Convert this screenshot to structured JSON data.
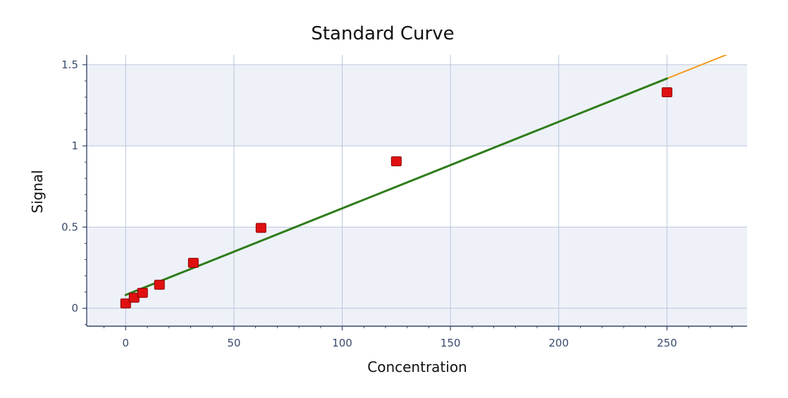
{
  "chart_data": {
    "type": "scatter",
    "title": "Standard Curve",
    "xlabel": "Concentration",
    "ylabel": "Signal",
    "xlim": [
      -18,
      287
    ],
    "ylim": [
      -0.11,
      1.56
    ],
    "x_ticks": [
      0,
      50,
      100,
      150,
      200,
      250
    ],
    "y_ticks": [
      0,
      0.5,
      1,
      1.5
    ],
    "x_tick_labels": [
      "0",
      "50",
      "100",
      "150",
      "200",
      "250"
    ],
    "y_tick_labels": [
      "0",
      "0.5",
      "1",
      "1.5"
    ],
    "grid": true,
    "series": [
      {
        "kind": "points",
        "color": "#e01010",
        "x": [
          0,
          3.9,
          7.8,
          15.6,
          31.25,
          62.5,
          125,
          250
        ],
        "y": [
          0.03,
          0.065,
          0.095,
          0.145,
          0.28,
          0.495,
          0.905,
          1.33
        ]
      },
      {
        "kind": "fit-line",
        "color": "#f39c1e",
        "x": [
          0,
          280
        ],
        "y": [
          0.082,
          1.575
        ]
      },
      {
        "kind": "fit-line",
        "color": "#2e7d1a",
        "x": [
          0,
          250
        ],
        "y": [
          0.082,
          1.415
        ]
      }
    ]
  }
}
